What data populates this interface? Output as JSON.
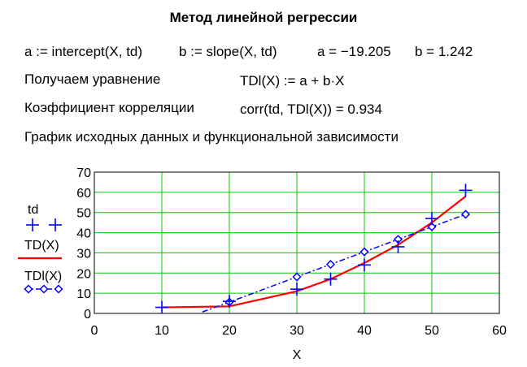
{
  "document": {
    "title": "Метод линейной регрессии",
    "line1": {
      "a_def": "a := intercept(X, td)",
      "b_def": "b := slope(X, td)",
      "a_val": "a = −19.205",
      "b_val": "b = 1.242"
    },
    "line2": {
      "label": "Получаем уравнение",
      "expr": "TDl(X) := a + b·X"
    },
    "line3": {
      "label": "Коэффициент корреляции",
      "expr": "corr(td, TDl(X)) = 0.934"
    },
    "line4": "График исходных данных и функциональной зависимости"
  },
  "chart_data": {
    "type": "line",
    "xlabel": "X",
    "xlim": [
      0,
      60
    ],
    "ylim": [
      0,
      70
    ],
    "x_ticks": [
      0,
      10,
      20,
      30,
      40,
      50,
      60
    ],
    "y_ticks": [
      0,
      10,
      20,
      30,
      40,
      50,
      60,
      70
    ],
    "grid": true,
    "legend_position": "left",
    "colors": {
      "grid": "#00cc00",
      "td": "#0000ff",
      "td_curve": "#ff0000",
      "tdl": "#0000ff"
    },
    "series": [
      {
        "name": "td",
        "style": "plus-markers",
        "x": [
          10,
          20,
          30,
          35,
          40,
          45,
          50,
          55
        ],
        "y": [
          3,
          6,
          12,
          17,
          24,
          33,
          47,
          61
        ]
      },
      {
        "name": "TD(X)",
        "style": "solid-line",
        "x": [
          10,
          20,
          30,
          35,
          40,
          45,
          50,
          55
        ],
        "y": [
          3,
          3.5,
          11,
          17,
          25,
          34,
          45,
          58
        ]
      },
      {
        "name": "TDl(X)",
        "style": "dash-dot-diamonds",
        "x": [
          16,
          20,
          30,
          35,
          40,
          45,
          50,
          55
        ],
        "y": [
          0.7,
          5.6,
          18.1,
          24.3,
          30.5,
          36.7,
          42.9,
          49.1
        ],
        "marker_x": [
          20,
          30,
          35,
          40,
          45,
          50,
          55
        ]
      }
    ]
  }
}
